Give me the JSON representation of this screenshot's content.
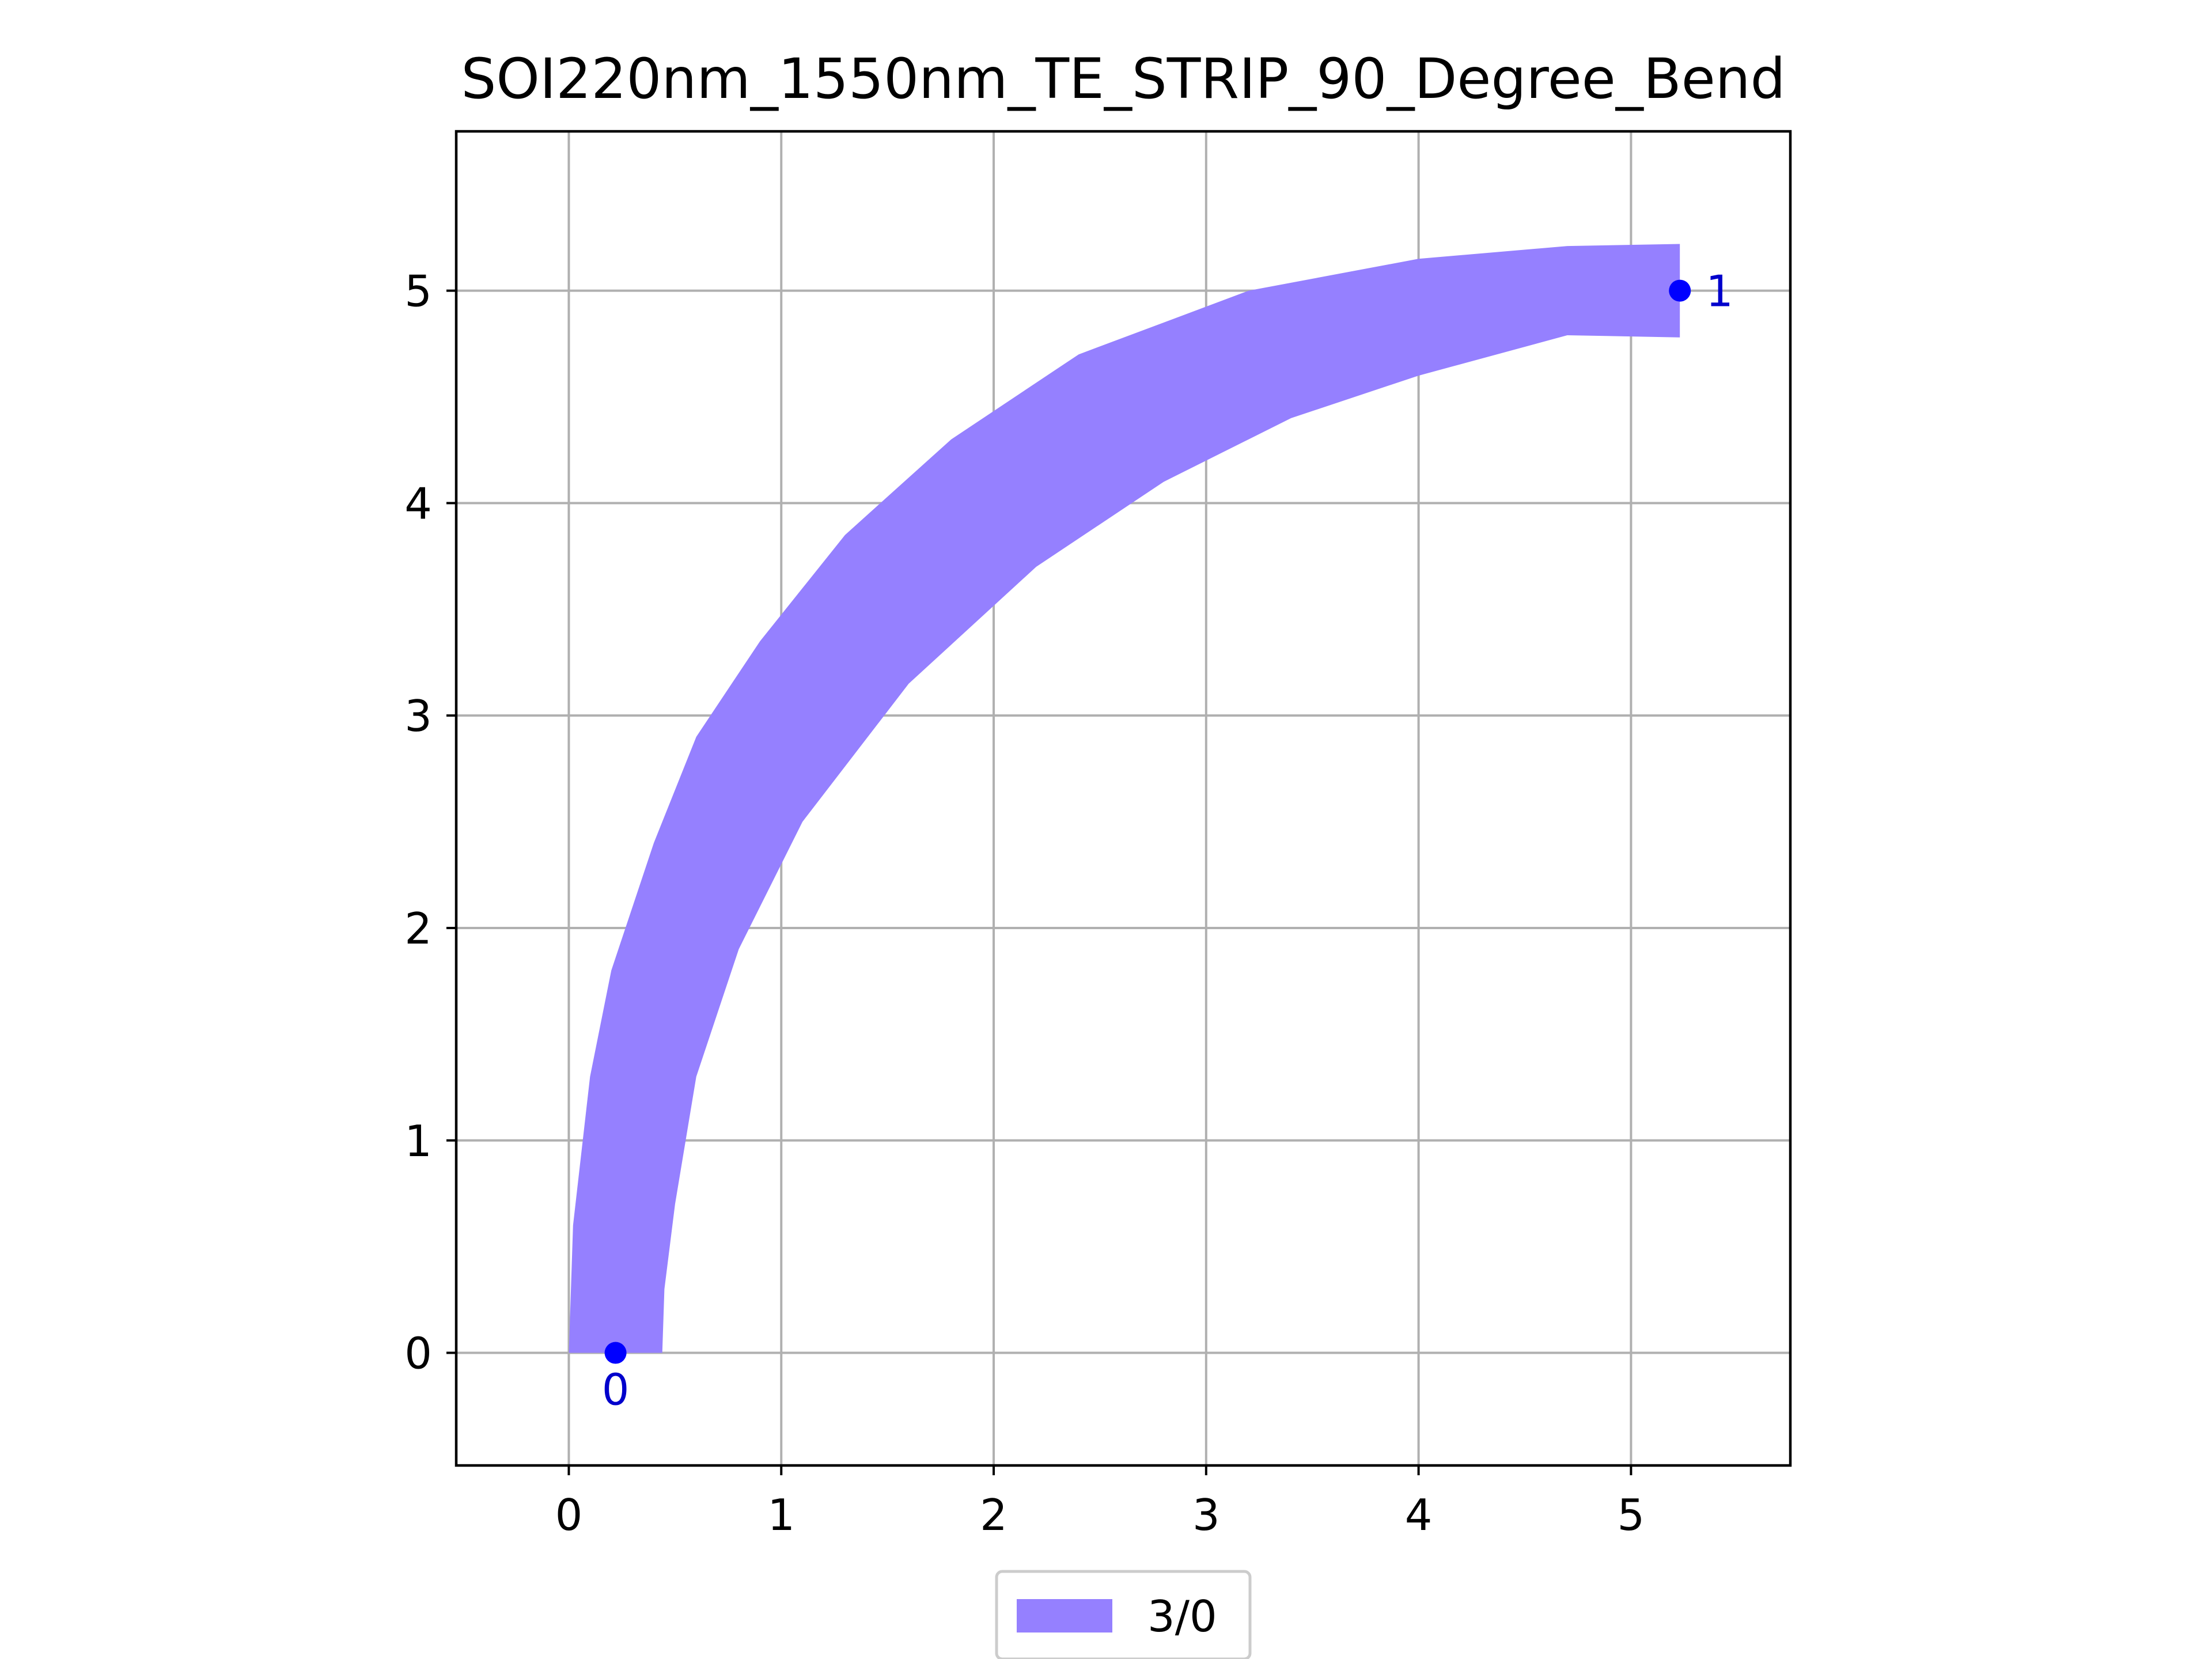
{
  "chart_data": {
    "type": "area",
    "title": "SOI220nm_1550nm_TE_STRIP_90_Degree_Bend",
    "xlabel": "",
    "ylabel": "",
    "xlim": [
      -0.53,
      5.75
    ],
    "ylim": [
      -0.53,
      5.75
    ],
    "xticks": [
      0,
      1,
      2,
      3,
      4,
      5
    ],
    "yticks": [
      0,
      1,
      2,
      3,
      4,
      5
    ],
    "grid": true,
    "legend": {
      "placement": "bottom-center",
      "entries": [
        {
          "label": "3/0",
          "color": "#9580ff"
        }
      ]
    },
    "series": [
      {
        "name": "3/0",
        "color": "#9580ff",
        "shape": "waveguide-bend",
        "polygon": [
          [
            0.0,
            0.0
          ],
          [
            0.02,
            0.6
          ],
          [
            0.1,
            1.3
          ],
          [
            0.2,
            1.8
          ],
          [
            0.4,
            2.4
          ],
          [
            0.6,
            2.9
          ],
          [
            0.9,
            3.35
          ],
          [
            1.3,
            3.85
          ],
          [
            1.8,
            4.3
          ],
          [
            2.4,
            4.7
          ],
          [
            3.2,
            5.0
          ],
          [
            4.0,
            5.15
          ],
          [
            4.7,
            5.21
          ],
          [
            5.23,
            5.22
          ],
          [
            5.23,
            4.78
          ],
          [
            4.7,
            4.79
          ],
          [
            4.0,
            4.6
          ],
          [
            3.4,
            4.4
          ],
          [
            2.8,
            4.1
          ],
          [
            2.2,
            3.7
          ],
          [
            1.6,
            3.15
          ],
          [
            1.1,
            2.5
          ],
          [
            0.8,
            1.9
          ],
          [
            0.6,
            1.3
          ],
          [
            0.5,
            0.7
          ],
          [
            0.45,
            0.3
          ],
          [
            0.44,
            0.0
          ]
        ]
      }
    ],
    "ports": [
      {
        "label": "0",
        "x": 0.22,
        "y": 0.0
      },
      {
        "label": "1",
        "x": 5.23,
        "y": 5.0
      }
    ],
    "colors": {
      "port": "#0000ff",
      "port_label": "#0000cc",
      "grid": "#b0b0b0",
      "frame": "#000000"
    }
  }
}
